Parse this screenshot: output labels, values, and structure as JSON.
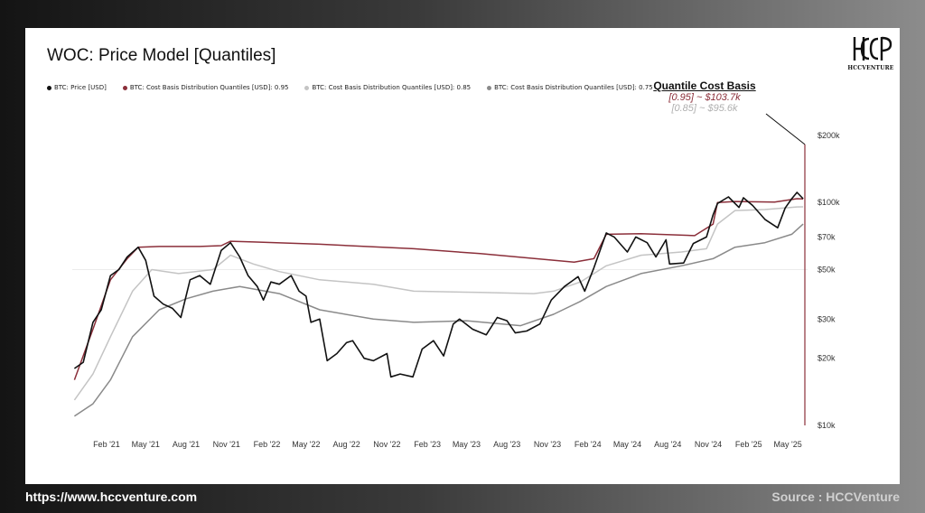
{
  "footer": {
    "url": "https://www.hccventure.com",
    "source": "Source : HCCVenture"
  },
  "logo": {
    "text": "HCCVENTURE"
  },
  "annotation": {
    "title": "Quantile Cost Basis",
    "q095": "[0.95] ~ $103.7k",
    "q085": "[0.85] ~ $95.6k"
  },
  "colors": {
    "price": "#111111",
    "q095": "#8b2f3a",
    "q085": "#c4c4c4",
    "q075": "#8a8a8a"
  },
  "chart_data": {
    "type": "line",
    "title": "WOC: Price Model [Quantiles]",
    "y_scale": "log",
    "ylim": [
      10000,
      250000
    ],
    "xlim": [
      "2020-11-15",
      "2025-06-15"
    ],
    "y_ticks": [
      {
        "value": 200000,
        "label": "$200k"
      },
      {
        "value": 100000,
        "label": "$100k"
      },
      {
        "value": 70000,
        "label": "$70k"
      },
      {
        "value": 50000,
        "label": "$50k"
      },
      {
        "value": 30000,
        "label": "$30k"
      },
      {
        "value": 20000,
        "label": "$20k"
      },
      {
        "value": 10000,
        "label": "$10k"
      }
    ],
    "x_ticks": [
      {
        "value": "2021-02-01",
        "label": "Feb '21"
      },
      {
        "value": "2021-05-01",
        "label": "May '21"
      },
      {
        "value": "2021-08-01",
        "label": "Aug '21"
      },
      {
        "value": "2021-11-01",
        "label": "Nov '21"
      },
      {
        "value": "2022-02-01",
        "label": "Feb '22"
      },
      {
        "value": "2022-05-01",
        "label": "May '22"
      },
      {
        "value": "2022-08-01",
        "label": "Aug '22"
      },
      {
        "value": "2022-11-01",
        "label": "Nov '22"
      },
      {
        "value": "2023-02-01",
        "label": "Feb '23"
      },
      {
        "value": "2023-05-01",
        "label": "May '23"
      },
      {
        "value": "2023-08-01",
        "label": "Aug '23"
      },
      {
        "value": "2023-11-01",
        "label": "Nov '23"
      },
      {
        "value": "2024-02-01",
        "label": "Feb '24"
      },
      {
        "value": "2024-05-01",
        "label": "May '24"
      },
      {
        "value": "2024-08-01",
        "label": "Aug '24"
      },
      {
        "value": "2024-11-01",
        "label": "Nov '24"
      },
      {
        "value": "2025-02-01",
        "label": "Feb '25"
      },
      {
        "value": "2025-05-01",
        "label": "May '25"
      }
    ],
    "series": [
      {
        "name": "BTC: Price [USD]",
        "color": "#111111",
        "x": [
          "2020-11-20",
          "2020-12-10",
          "2021-01-01",
          "2021-01-20",
          "2021-02-10",
          "2021-03-01",
          "2021-03-20",
          "2021-04-14",
          "2021-05-01",
          "2021-05-20",
          "2021-06-10",
          "2021-07-01",
          "2021-07-20",
          "2021-08-10",
          "2021-09-01",
          "2021-09-25",
          "2021-10-20",
          "2021-11-10",
          "2021-12-01",
          "2021-12-20",
          "2022-01-10",
          "2022-01-24",
          "2022-02-10",
          "2022-03-01",
          "2022-03-28",
          "2022-04-15",
          "2022-05-01",
          "2022-05-12",
          "2022-06-01",
          "2022-06-18",
          "2022-07-10",
          "2022-08-01",
          "2022-08-15",
          "2022-09-10",
          "2022-10-01",
          "2022-11-01",
          "2022-11-10",
          "2022-12-01",
          "2022-12-30",
          "2023-01-20",
          "2023-02-15",
          "2023-03-10",
          "2023-04-01",
          "2023-04-15",
          "2023-05-15",
          "2023-06-15",
          "2023-07-10",
          "2023-08-01",
          "2023-08-20",
          "2023-09-15",
          "2023-10-15",
          "2023-11-10",
          "2023-12-10",
          "2024-01-10",
          "2024-01-25",
          "2024-02-15",
          "2024-03-14",
          "2024-04-01",
          "2024-05-01",
          "2024-05-20",
          "2024-06-15",
          "2024-07-05",
          "2024-07-28",
          "2024-08-05",
          "2024-09-06",
          "2024-09-28",
          "2024-10-28",
          "2024-11-12",
          "2024-11-22",
          "2024-12-17",
          "2025-01-10",
          "2025-01-20",
          "2025-02-10",
          "2025-03-10",
          "2025-04-08",
          "2025-04-25",
          "2025-05-10",
          "2025-05-22",
          "2025-06-05"
        ],
        "y": [
          18000,
          19200,
          29000,
          33000,
          47000,
          50000,
          57000,
          63000,
          55000,
          38000,
          35000,
          33500,
          30500,
          45000,
          47000,
          43000,
          61000,
          66000,
          57000,
          47000,
          42000,
          36500,
          44000,
          43000,
          47000,
          40000,
          38000,
          29000,
          30000,
          19500,
          21000,
          23500,
          24000,
          20000,
          19500,
          21000,
          16500,
          17000,
          16500,
          22000,
          24000,
          20500,
          28500,
          30000,
          27000,
          25500,
          30500,
          29500,
          26000,
          26500,
          28500,
          36500,
          42000,
          46500,
          40000,
          51000,
          73000,
          70000,
          60000,
          70000,
          66000,
          57000,
          68000,
          53000,
          53500,
          65500,
          70000,
          88000,
          99000,
          106000,
          95000,
          105000,
          97000,
          84000,
          77000,
          94500,
          104000,
          111000,
          104000
        ]
      },
      {
        "name": "BTC: Cost Basis Distribution Quantiles [USD]: 0.95",
        "color": "#8b2f3a",
        "x": [
          "2020-11-20",
          "2021-01-01",
          "2021-02-10",
          "2021-03-20",
          "2021-04-14",
          "2021-06-01",
          "2021-09-01",
          "2021-10-20",
          "2021-11-10",
          "2022-01-01",
          "2022-06-01",
          "2023-01-01",
          "2023-06-01",
          "2024-01-01",
          "2024-02-15",
          "2024-03-14",
          "2024-06-01",
          "2024-10-01",
          "2024-11-12",
          "2024-11-22",
          "2025-01-01",
          "2025-04-01",
          "2025-05-22",
          "2025-06-05"
        ],
        "y": [
          16000,
          27000,
          45000,
          56000,
          63000,
          63500,
          63500,
          64000,
          67000,
          66500,
          65000,
          62000,
          59000,
          54000,
          56000,
          72000,
          72500,
          71000,
          80000,
          100000,
          101000,
          100500,
          104000,
          103700
        ]
      },
      {
        "name": "BTC: Cost Basis Distribution Quantiles [USD]: 0.85",
        "color": "#c4c4c4",
        "x": [
          "2020-11-20",
          "2021-01-01",
          "2021-02-10",
          "2021-04-01",
          "2021-05-15",
          "2021-07-15",
          "2021-10-01",
          "2021-11-10",
          "2022-01-01",
          "2022-03-01",
          "2022-06-01",
          "2022-10-01",
          "2023-01-01",
          "2023-06-01",
          "2023-10-01",
          "2023-11-15",
          "2024-01-15",
          "2024-03-14",
          "2024-06-01",
          "2024-09-01",
          "2024-10-28",
          "2024-11-22",
          "2025-01-01",
          "2025-03-10",
          "2025-05-22",
          "2025-06-05"
        ],
        "y": [
          13000,
          17000,
          25000,
          40000,
          50000,
          48000,
          50000,
          58000,
          53000,
          49000,
          45000,
          43000,
          40000,
          39500,
          39000,
          40000,
          44000,
          52000,
          58000,
          60000,
          62000,
          80000,
          92000,
          93000,
          95500,
          95600
        ]
      },
      {
        "name": "BTC: Cost Basis Distribution Quantiles [USD]: 0.75",
        "color": "#8a8a8a",
        "x": [
          "2020-11-20",
          "2021-01-01",
          "2021-02-10",
          "2021-04-01",
          "2021-06-01",
          "2021-08-01",
          "2021-10-01",
          "2021-12-01",
          "2022-03-01",
          "2022-06-01",
          "2022-10-01",
          "2023-01-01",
          "2023-05-01",
          "2023-09-01",
          "2023-11-15",
          "2024-01-15",
          "2024-03-14",
          "2024-06-01",
          "2024-09-01",
          "2024-11-12",
          "2025-01-01",
          "2025-03-10",
          "2025-05-10",
          "2025-06-05"
        ],
        "y": [
          11000,
          12500,
          16000,
          25000,
          33000,
          37000,
          40000,
          42000,
          39000,
          33000,
          30000,
          29000,
          29500,
          28000,
          31500,
          36000,
          42000,
          48000,
          52000,
          56000,
          63000,
          66000,
          72000,
          80000
        ]
      }
    ]
  }
}
